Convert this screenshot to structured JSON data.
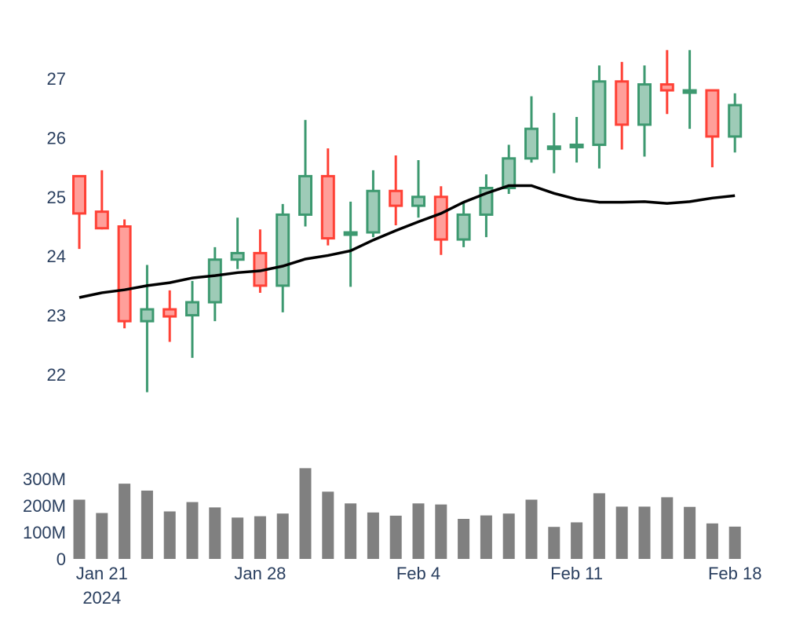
{
  "chart_data": [
    {
      "type": "candlestick",
      "title": "",
      "xlabel": "",
      "ylabel": "",
      "ylim": [
        21.4,
        27.6
      ],
      "yticks": [
        22,
        23,
        24,
        25,
        26,
        27
      ],
      "grid": false,
      "legend": "none",
      "colors": {
        "increasing": "#3d9970",
        "decreasing": "#ff4136",
        "increasing_fill": "#9ecbb7",
        "decreasing_fill": "#ff9f9a",
        "ma_line": "#000000"
      },
      "x": [
        "2024-01-20",
        "2024-01-21",
        "2024-01-22",
        "2024-01-23",
        "2024-01-24",
        "2024-01-25",
        "2024-01-26",
        "2024-01-27",
        "2024-01-28",
        "2024-01-29",
        "2024-01-30",
        "2024-01-31",
        "2024-02-01",
        "2024-02-02",
        "2024-02-03",
        "2024-02-04",
        "2024-02-05",
        "2024-02-06",
        "2024-02-07",
        "2024-02-08",
        "2024-02-09",
        "2024-02-10",
        "2024-02-11",
        "2024-02-12",
        "2024-02-13",
        "2024-02-14",
        "2024-02-15",
        "2024-02-16",
        "2024-02-17",
        "2024-02-18"
      ],
      "open": [
        25.35,
        24.75,
        24.5,
        22.9,
        23.1,
        23.0,
        23.22,
        23.94,
        24.05,
        23.5,
        24.7,
        25.35,
        24.4,
        24.4,
        25.1,
        24.85,
        25.0,
        24.28,
        24.7,
        25.15,
        25.65,
        25.85,
        25.85,
        25.88,
        26.95,
        26.22,
        26.9,
        26.8,
        26.8,
        26.02
      ],
      "high": [
        25.35,
        25.45,
        24.62,
        23.85,
        23.42,
        23.58,
        24.15,
        24.65,
        24.45,
        24.88,
        26.3,
        25.82,
        24.92,
        25.45,
        25.7,
        25.62,
        25.18,
        24.9,
        25.38,
        25.88,
        26.7,
        26.42,
        26.35,
        27.22,
        27.28,
        27.22,
        27.48,
        27.48,
        26.8,
        26.75
      ],
      "low": [
        24.12,
        24.45,
        22.78,
        21.7,
        22.55,
        22.28,
        22.9,
        23.78,
        23.38,
        23.05,
        24.5,
        24.18,
        23.48,
        24.32,
        24.52,
        24.65,
        24.02,
        24.15,
        24.32,
        25.05,
        25.58,
        25.4,
        25.58,
        25.48,
        25.8,
        25.68,
        26.4,
        26.15,
        25.5,
        25.75
      ],
      "close": [
        24.72,
        24.47,
        22.9,
        23.1,
        22.98,
        23.22,
        23.94,
        24.05,
        23.5,
        24.7,
        25.35,
        24.3,
        24.4,
        25.1,
        24.85,
        25.0,
        24.28,
        24.7,
        25.15,
        25.65,
        26.15,
        25.85,
        25.88,
        26.95,
        26.22,
        26.9,
        26.8,
        26.8,
        26.02,
        26.55
      ],
      "moving_average": [
        23.3,
        23.38,
        23.43,
        23.5,
        23.55,
        23.63,
        23.67,
        23.72,
        23.75,
        23.83,
        23.95,
        24.01,
        24.09,
        24.27,
        24.43,
        24.58,
        24.72,
        24.91,
        25.06,
        25.19,
        25.19,
        25.06,
        24.96,
        24.91,
        24.91,
        24.92,
        24.89,
        24.92,
        24.98,
        25.02
      ]
    },
    {
      "type": "bar",
      "title": "",
      "xlabel": "",
      "ylabel": "",
      "ylim": [
        0,
        350
      ],
      "yticks": [
        0,
        100,
        200,
        300
      ],
      "ytick_labels": [
        "0",
        "100M",
        "200M",
        "300M"
      ],
      "values": [
        222,
        172,
        282,
        256,
        178,
        213,
        193,
        155,
        160,
        170,
        340,
        252,
        208,
        174,
        162,
        208,
        204,
        150,
        163,
        170,
        222,
        120,
        137,
        246,
        196,
        196,
        231,
        195,
        133,
        121
      ],
      "color": "#808080",
      "xticks": [
        "Jan 21",
        "Jan 28",
        "Feb 4",
        "Feb 11",
        "Feb 18"
      ],
      "xtick_dates": [
        "2024-01-21",
        "2024-01-28",
        "2024-02-04",
        "2024-02-11",
        "2024-02-18"
      ],
      "xtick_year": "2024"
    }
  ]
}
